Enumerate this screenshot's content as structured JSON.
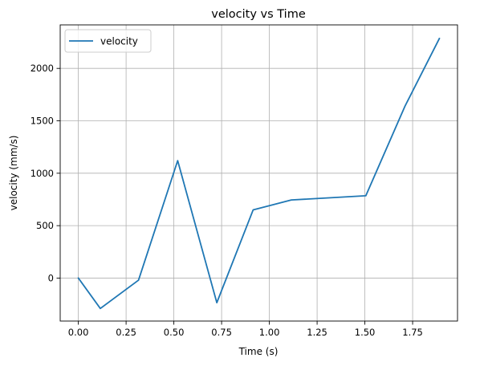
{
  "chart_data": {
    "type": "line",
    "title": "velocity vs Time",
    "xlabel": "Time (s)",
    "ylabel": "velocity (mm/s)",
    "xlim": [
      -0.095,
      1.985
    ],
    "ylim": [
      -410,
      2415
    ],
    "x_ticks": [
      0.0,
      0.25,
      0.5,
      0.75,
      1.0,
      1.25,
      1.5,
      1.75
    ],
    "x_tick_labels": [
      "0.00",
      "0.25",
      "0.50",
      "0.75",
      "1.00",
      "1.25",
      "1.50",
      "1.75"
    ],
    "y_ticks": [
      0,
      500,
      1000,
      1500,
      2000
    ],
    "y_tick_labels": [
      "0",
      "500",
      "1000",
      "1500",
      "2000"
    ],
    "grid": true,
    "legend_position": "top-left",
    "series": [
      {
        "name": "velocity",
        "color": "#1f77b4",
        "x": [
          0.0,
          0.115,
          0.315,
          0.52,
          0.725,
          0.915,
          1.115,
          1.505,
          1.71,
          1.89
        ],
        "y": [
          0,
          -290,
          -20,
          1120,
          -235,
          650,
          745,
          785,
          1640,
          2285
        ]
      }
    ]
  }
}
